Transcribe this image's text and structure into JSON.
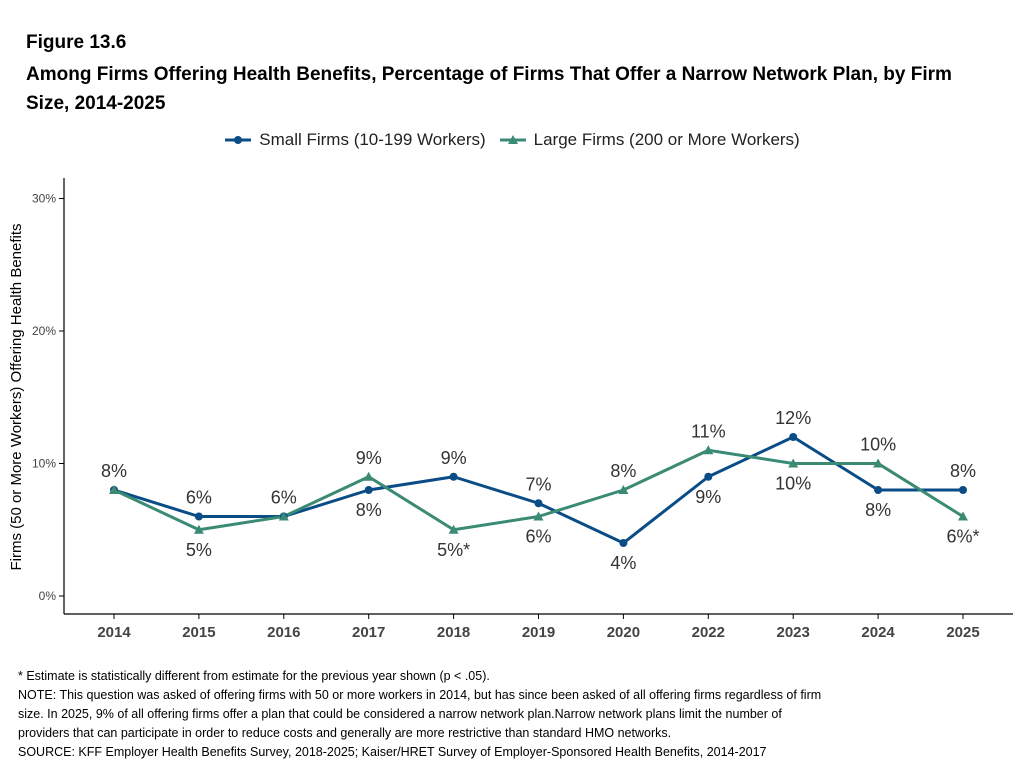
{
  "figure": {
    "label": "Figure 13.6",
    "title": "Among Firms Offering Health Benefits, Percentage of Firms That Offer a Narrow Network Plan, by Firm Size, 2014-2025"
  },
  "legend": [
    {
      "name": "Small Firms (10-199 Workers)",
      "color": "#0a4c85",
      "marker": "circle"
    },
    {
      "name": "Large Firms (200 or More Workers)",
      "color": "#3a8a74",
      "marker": "triangle"
    }
  ],
  "chart_data": {
    "type": "line",
    "x": [
      "2014",
      "2015",
      "2016",
      "2017",
      "2018",
      "2019",
      "2020",
      "2022",
      "2023",
      "2024",
      "2025"
    ],
    "ylabel": "Firms (50 or More Workers) Offering Health Benefits",
    "xlabel": "",
    "ylim": [
      0,
      30
    ],
    "yticks": [
      "0%",
      "10%",
      "20%",
      "30%"
    ],
    "grid": false,
    "legend_position": "top",
    "series": [
      {
        "name": "Small Firms (10-199 Workers)",
        "color": "#0a4c85",
        "marker": "circle",
        "values": [
          8,
          6,
          6,
          8,
          9,
          7,
          4,
          9,
          12,
          8,
          8
        ],
        "labels": [
          "8%",
          "6%",
          "6%",
          "8%",
          "9%",
          "7%",
          "4%",
          "9%",
          "12%",
          "8%",
          "8%"
        ]
      },
      {
        "name": "Large Firms (200 or More Workers)",
        "color": "#3a8a74",
        "marker": "triangle",
        "values": [
          8,
          5,
          6,
          9,
          5,
          6,
          8,
          11,
          10,
          10,
          6
        ],
        "labels": [
          "",
          "5%",
          "",
          "9%",
          "5%*",
          "6%",
          "8%",
          "11%",
          "10%",
          "10%",
          "6%*"
        ]
      }
    ]
  },
  "notes": {
    "line1": "* Estimate is statistically different from estimate for the previous year shown (p < .05).",
    "line2": "NOTE: This question was asked of offering firms with 50 or more workers in 2014, but has since been asked of all offering firms regardless of firm",
    "line3": "size. In 2025, 9% of all offering firms offer a plan that could be considered a narrow network plan.Narrow network plans limit the number of",
    "line4": "providers that can participate in order to reduce costs and generally are more restrictive than standard HMO networks.",
    "line5": "SOURCE: KFF Employer Health Benefits Survey, 2018-2025; Kaiser/HRET Survey of Employer-Sponsored Health Benefits, 2014-2017"
  }
}
